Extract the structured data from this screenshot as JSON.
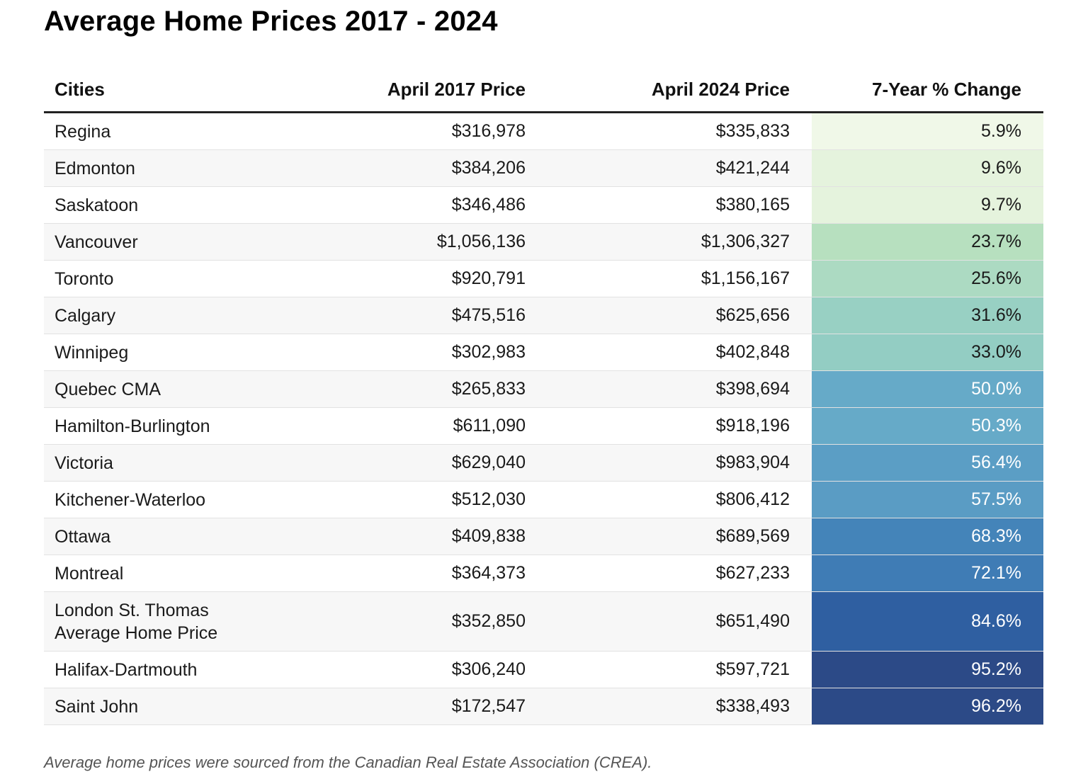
{
  "title": "Average Home Prices 2017 - 2024",
  "footnote": "Average home prices were sourced from the Canadian Real Estate Association (CREA).",
  "chart_data": {
    "type": "table",
    "columns": [
      "Cities",
      "April 2017 Price",
      "April 2024 Price",
      "7-Year % Change"
    ],
    "rows": [
      {
        "city": "Regina",
        "p2017": "$316,978",
        "p2024": "$335,833",
        "change": "5.9%",
        "change_value": 5.9,
        "bg": "#f0f8e8",
        "fg": "#1a1a1a"
      },
      {
        "city": "Edmonton",
        "p2017": "$384,206",
        "p2024": "$421,244",
        "change": "9.6%",
        "change_value": 9.6,
        "bg": "#e5f3dd",
        "fg": "#1a1a1a"
      },
      {
        "city": "Saskatoon",
        "p2017": "$346,486",
        "p2024": "$380,165",
        "change": "9.7%",
        "change_value": 9.7,
        "bg": "#e5f3dd",
        "fg": "#1a1a1a"
      },
      {
        "city": "Vancouver",
        "p2017": "$1,056,136",
        "p2024": "$1,306,327",
        "change": "23.7%",
        "change_value": 23.7,
        "bg": "#b7e0bf",
        "fg": "#1a1a1a"
      },
      {
        "city": "Toronto",
        "p2017": "$920,791",
        "p2024": "$1,156,167",
        "change": "25.6%",
        "change_value": 25.6,
        "bg": "#acdac2",
        "fg": "#1a1a1a"
      },
      {
        "city": "Calgary",
        "p2017": "$475,516",
        "p2024": "$625,656",
        "change": "31.6%",
        "change_value": 31.6,
        "bg": "#98d0c3",
        "fg": "#1a1a1a"
      },
      {
        "city": "Winnipeg",
        "p2017": "$302,983",
        "p2024": "$402,848",
        "change": "33.0%",
        "change_value": 33.0,
        "bg": "#93cdc3",
        "fg": "#1a1a1a"
      },
      {
        "city": "Quebec CMA",
        "p2017": "$265,833",
        "p2024": "$398,694",
        "change": "50.0%",
        "change_value": 50.0,
        "bg": "#66aac8",
        "fg": "#ffffff"
      },
      {
        "city": "Hamilton-Burlington",
        "p2017": "$611,090",
        "p2024": "$918,196",
        "change": "50.3%",
        "change_value": 50.3,
        "bg": "#66aac8",
        "fg": "#ffffff"
      },
      {
        "city": "Victoria",
        "p2017": "$629,040",
        "p2024": "$983,904",
        "change": "56.4%",
        "change_value": 56.4,
        "bg": "#5b9ec5",
        "fg": "#ffffff"
      },
      {
        "city": "Kitchener-Waterloo",
        "p2017": "$512,030",
        "p2024": "$806,412",
        "change": "57.5%",
        "change_value": 57.5,
        "bg": "#5a9cc4",
        "fg": "#ffffff"
      },
      {
        "city": "Ottawa",
        "p2017": "$409,838",
        "p2024": "$689,569",
        "change": "68.3%",
        "change_value": 68.3,
        "bg": "#4484b9",
        "fg": "#ffffff"
      },
      {
        "city": "Montreal",
        "p2017": "$364,373",
        "p2024": "$627,233",
        "change": "72.1%",
        "change_value": 72.1,
        "bg": "#3f7cb5",
        "fg": "#ffffff"
      },
      {
        "city": "London St. Thomas Average Home Price",
        "p2017": "$352,850",
        "p2024": "$651,490",
        "change": "84.6%",
        "change_value": 84.6,
        "bg": "#2f5fa1",
        "fg": "#ffffff",
        "tall": true
      },
      {
        "city": "Halifax-Dartmouth",
        "p2017": "$306,240",
        "p2024": "$597,721",
        "change": "95.2%",
        "change_value": 95.2,
        "bg": "#2c4a87",
        "fg": "#ffffff"
      },
      {
        "city": "Saint John",
        "p2017": "$172,547",
        "p2024": "$338,493",
        "change": "96.2%",
        "change_value": 96.2,
        "bg": "#2c4a87",
        "fg": "#ffffff"
      }
    ]
  }
}
